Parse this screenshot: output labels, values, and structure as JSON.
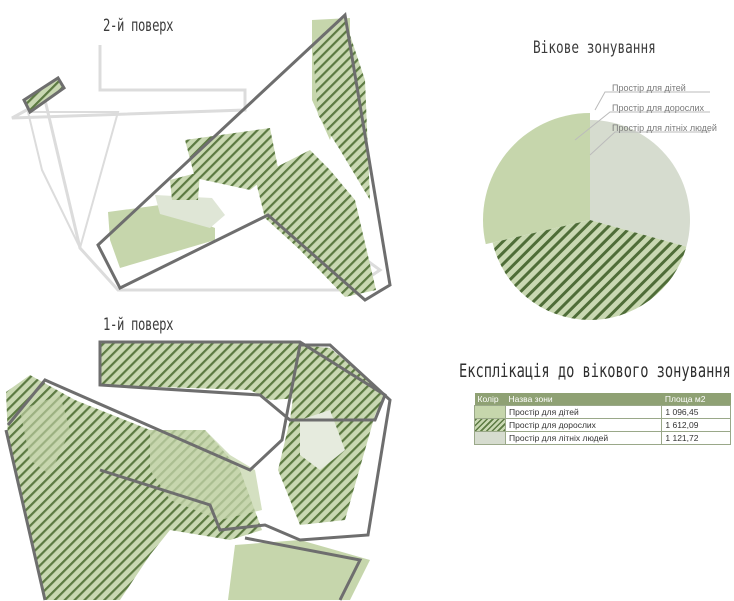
{
  "floors": {
    "upper_label": "2-й поверх",
    "lower_label": "1-й поверх"
  },
  "pie": {
    "title": "Вікове зонування",
    "callouts": [
      "Простір для дітей",
      "Простір для дорослих",
      "Простір для літніх людей"
    ]
  },
  "chart_data": {
    "type": "pie",
    "title": "Вікове зонування",
    "slices": [
      {
        "name": "Простір для дітей",
        "value": 1096.45
      },
      {
        "name": "Простір для дорослих",
        "value": 1612.09
      },
      {
        "name": "Простір для літніх людей",
        "value": 1121.72
      }
    ]
  },
  "legend": {
    "title": "Експлікація до вікового зонування",
    "headers": {
      "color": "Колір",
      "name": "Назва зони",
      "area": "Площа м2"
    },
    "rows": [
      {
        "name": "Простір для дітей",
        "area": "1 096,45"
      },
      {
        "name": "Простір для дорослих",
        "area": "1 612,09"
      },
      {
        "name": "Простір для літніх людей",
        "area": "1 121,72"
      }
    ]
  },
  "colors": {
    "children": "#c6d6ac",
    "adults_hatch": "#5c7a42",
    "adults_bg": "#c9d8b2",
    "elderly": "#d6dccf",
    "outline": "#6e6e6e",
    "header": "#8fa174"
  }
}
